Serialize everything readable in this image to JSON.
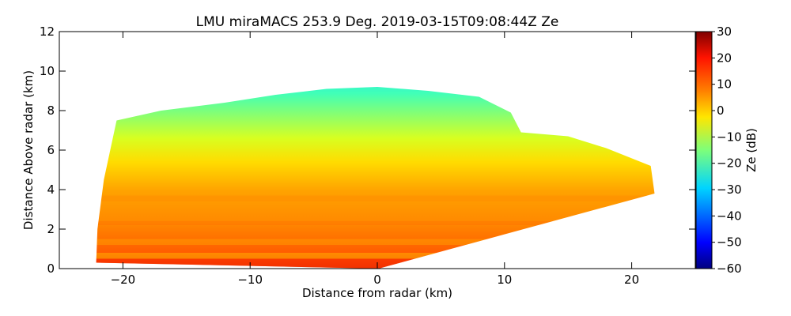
{
  "chart_data": {
    "type": "heatmap",
    "subtype": "radar-rhi",
    "title": "LMU miraMACS 253.9 Deg. 2019-03-15T09:08:44Z  Ze",
    "xlabel": "Distance from radar (km)",
    "ylabel": "Distance Above radar  (km)",
    "xlim": [
      -25,
      25
    ],
    "ylim": [
      0,
      12
    ],
    "xticks": [
      -20,
      -10,
      0,
      10,
      20
    ],
    "xtick_labels": [
      "−20",
      "−10",
      "0",
      "10",
      "20"
    ],
    "yticks": [
      0,
      2,
      4,
      6,
      8,
      10,
      12
    ],
    "ytick_labels": [
      "0",
      "2",
      "4",
      "6",
      "8",
      "10",
      "12"
    ],
    "colorbar": {
      "label": "Ze (dB)",
      "colormap": "jet",
      "range": [
        -60,
        30
      ],
      "ticks": [
        30,
        20,
        10,
        0,
        -10,
        -20,
        -30,
        -40,
        -50,
        -60
      ],
      "tick_labels": [
        "30",
        "20",
        "10",
        "0",
        "−10",
        "−20",
        "−30",
        "−40",
        "−50",
        "−60"
      ]
    },
    "echo_region": {
      "outline_km": [
        [
          -22.1,
          0.3
        ],
        [
          -22.0,
          2.0
        ],
        [
          -21.5,
          4.5
        ],
        [
          -20.5,
          7.5
        ],
        [
          -17,
          8.0
        ],
        [
          -12,
          8.4
        ],
        [
          -8,
          8.8
        ],
        [
          -4,
          9.1
        ],
        [
          0,
          9.2
        ],
        [
          4,
          9.0
        ],
        [
          8,
          8.7
        ],
        [
          10.5,
          7.9
        ],
        [
          11.3,
          6.9
        ],
        [
          15,
          6.7
        ],
        [
          18,
          6.1
        ],
        [
          21.5,
          5.2
        ],
        [
          21.8,
          3.8
        ],
        [
          0.1,
          0
        ]
      ],
      "layers": [
        {
          "height_km_range": [
            0,
            1.0
          ],
          "ze_db": 18
        },
        {
          "height_km_range": [
            1.0,
            3.0
          ],
          "ze_db": 12
        },
        {
          "height_km_range": [
            3.0,
            4.5
          ],
          "ze_db": 4
        },
        {
          "height_km_range": [
            4.5,
            6.0
          ],
          "ze_db": -6
        },
        {
          "height_km_range": [
            6.0,
            7.5
          ],
          "ze_db": -14
        },
        {
          "height_km_range": [
            7.5,
            9.2
          ],
          "ze_db": -26
        }
      ]
    }
  }
}
